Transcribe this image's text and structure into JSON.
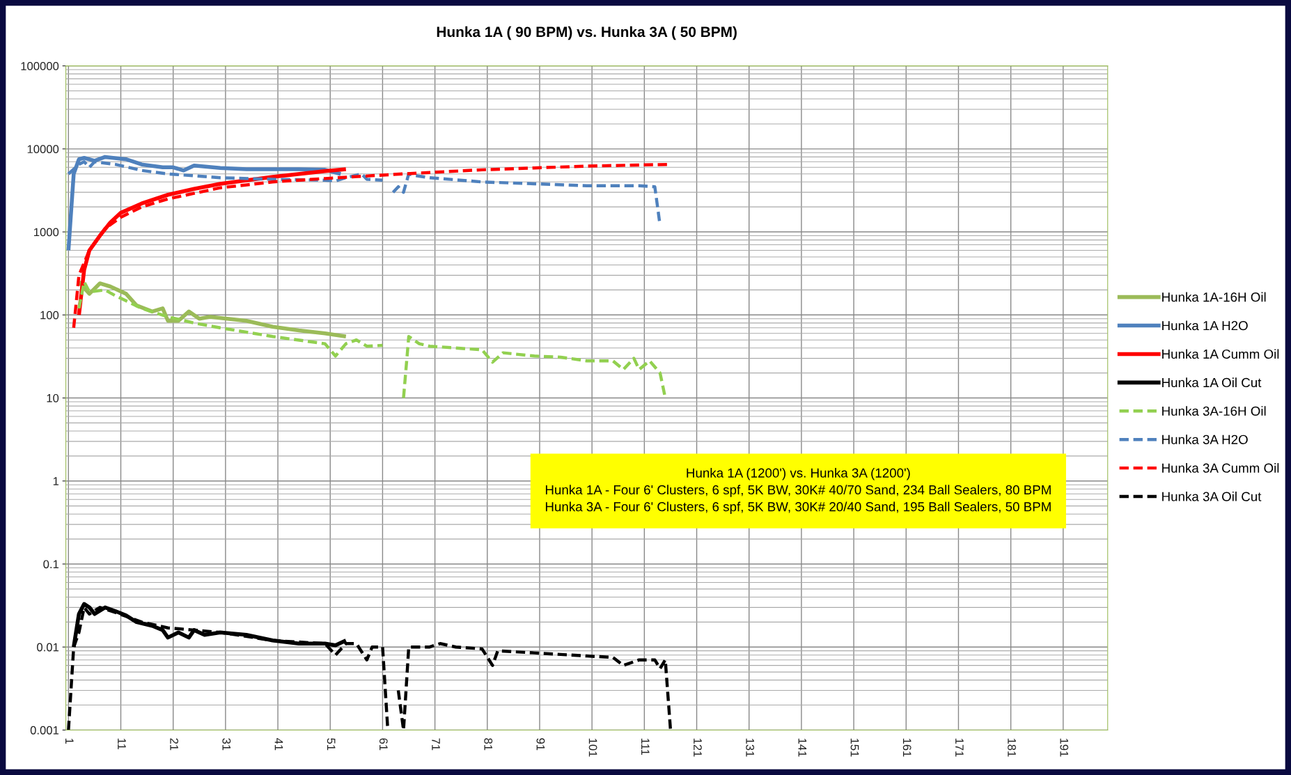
{
  "chart_data": {
    "type": "line",
    "title": "Hunka 1A ( 90 BPM) vs. Hunka 3A ( 50 BPM)",
    "log": "y",
    "ylim": [
      0.001,
      100000
    ],
    "yticks": [
      0.001,
      0.01,
      0.1,
      1,
      10,
      100,
      1000,
      10000,
      100000
    ],
    "xlim": [
      0.5,
      199.5
    ],
    "xticks": [
      1,
      11,
      21,
      31,
      41,
      51,
      61,
      71,
      81,
      91,
      101,
      111,
      121,
      131,
      141,
      151,
      161,
      171,
      181,
      191
    ],
    "grid": true,
    "legend": "right",
    "marker": "none",
    "annotations": [
      "Hunka 1A (1200') vs. Hunka 3A (1200')\nHunka 1A - Four 6' Clusters, 6 spf, 5K BW, 30K# 40/70 Sand, 234 Ball Sealers, 80 BPM\nHunka 3A - Four 6' Clusters, 6 spf, 5K BW, 30K# 20/40 Sand, 195 Ball Sealers, 50 BPM"
    ],
    "series": [
      {
        "name": "Hunka 1A-16H Oil",
        "color": "#9bbb59",
        "line_style": "solid",
        "x": [
          3,
          5,
          7,
          9,
          12,
          14,
          17,
          19,
          20,
          22,
          24,
          26,
          28,
          35,
          40,
          45,
          50,
          54
        ],
        "values": [
          250,
          180,
          240,
          220,
          180,
          130,
          110,
          120,
          85,
          85,
          110,
          90,
          95,
          85,
          72,
          65,
          60,
          55
        ]
      },
      {
        "name": "Hunka 1A H2O",
        "color": "#4f81bd",
        "line_style": "solid",
        "x": [
          1,
          2,
          3,
          4,
          6,
          8,
          12,
          15,
          19,
          21,
          23,
          25,
          30,
          35,
          40,
          45,
          50,
          53
        ],
        "values": [
          600,
          5000,
          7500,
          7800,
          7200,
          8000,
          7500,
          6500,
          6000,
          6000,
          5500,
          6300,
          5900,
          5700,
          5700,
          5700,
          5600,
          5000
        ]
      },
      {
        "name": "Hunka 1A Cumm Oil",
        "color": "#ff0000",
        "line_style": "solid",
        "x": [
          3,
          4,
          5,
          7,
          9,
          11,
          15,
          20,
          25,
          30,
          40,
          50,
          54
        ],
        "values": [
          100,
          350,
          600,
          900,
          1300,
          1700,
          2200,
          2800,
          3300,
          3800,
          4600,
          5400,
          5700
        ]
      },
      {
        "name": "Hunka 1A Oil Cut",
        "color": "#000000",
        "line_style": "solid",
        "x": [
          2,
          3,
          4,
          5,
          6,
          8,
          10,
          12,
          14,
          17,
          19,
          20,
          22,
          24,
          25,
          27,
          30,
          35,
          40,
          45,
          50,
          52,
          54
        ],
        "values": [
          0.01,
          0.025,
          0.033,
          0.03,
          0.025,
          0.03,
          0.027,
          0.024,
          0.02,
          0.018,
          0.016,
          0.013,
          0.015,
          0.013,
          0.016,
          0.014,
          0.015,
          0.014,
          0.012,
          0.011,
          0.011,
          0.0105,
          0.012
        ]
      },
      {
        "name": "Hunka 3A-16H Oil",
        "color": "#92d050",
        "line_style": "dashed",
        "x": [
          3,
          4,
          5,
          8,
          10,
          15,
          20,
          25,
          30,
          40,
          50,
          52,
          54,
          56,
          58,
          61,
          62,
          65,
          66,
          68,
          70,
          75,
          80,
          82,
          84,
          90,
          95,
          100,
          105,
          107,
          109,
          110,
          112,
          114,
          115
        ],
        "values": [
          120,
          250,
          190,
          200,
          170,
          120,
          95,
          80,
          70,
          55,
          45,
          32,
          45,
          50,
          42,
          43,
          null,
          10,
          55,
          45,
          42,
          40,
          38,
          27,
          35,
          32,
          31,
          28,
          28,
          22,
          30,
          22,
          28,
          20,
          10
        ]
      },
      {
        "name": "Hunka 3A H2O",
        "color": "#4f81bd",
        "line_style": "dashed",
        "x": [
          1,
          3,
          4,
          5,
          6,
          10,
          15,
          20,
          30,
          40,
          50,
          52,
          54,
          57,
          58,
          61,
          62,
          63,
          64,
          65,
          66,
          67,
          70,
          80,
          90,
          100,
          110,
          113,
          114
        ],
        "values": [
          5000,
          6500,
          7000,
          6000,
          7000,
          6500,
          5500,
          5000,
          4500,
          4300,
          4200,
          4100,
          4500,
          5000,
          4300,
          4200,
          null,
          3000,
          3500,
          3000,
          5000,
          4800,
          4500,
          4000,
          3800,
          3600,
          3600,
          3500,
          1200
        ]
      },
      {
        "name": "Hunka 3A Cumm Oil",
        "color": "#ff0000",
        "line_style": "dashed",
        "x": [
          2,
          3,
          5,
          8,
          11,
          15,
          20,
          30,
          40,
          50,
          60,
          70,
          80,
          90,
          100,
          110,
          116
        ],
        "values": [
          70,
          300,
          600,
          1100,
          1500,
          2000,
          2500,
          3400,
          4000,
          4400,
          4800,
          5200,
          5600,
          5900,
          6200,
          6400,
          6500
        ]
      },
      {
        "name": "Hunka 3A Oil Cut",
        "color": "#000000",
        "line_style": "dashed",
        "x": [
          1,
          2,
          3,
          4,
          5,
          7,
          10,
          15,
          20,
          25,
          30,
          40,
          50,
          52,
          54,
          56,
          58,
          59,
          61,
          62,
          63,
          64,
          65,
          66,
          70,
          72,
          75,
          80,
          82,
          83,
          90,
          100,
          105,
          107,
          110,
          113,
          114,
          115,
          116
        ],
        "values": [
          0.001,
          0.01,
          0.015,
          0.03,
          0.025,
          0.03,
          0.026,
          0.02,
          0.017,
          0.016,
          0.015,
          0.012,
          0.011,
          0.008,
          0.011,
          0.011,
          0.007,
          0.01,
          0.01,
          0.001,
          null,
          0.003,
          0.001,
          0.01,
          0.01,
          0.011,
          0.01,
          0.0095,
          0.006,
          0.009,
          0.0085,
          0.0078,
          0.0075,
          0.006,
          0.007,
          0.007,
          0.0055,
          0.007,
          0.001
        ]
      }
    ]
  }
}
